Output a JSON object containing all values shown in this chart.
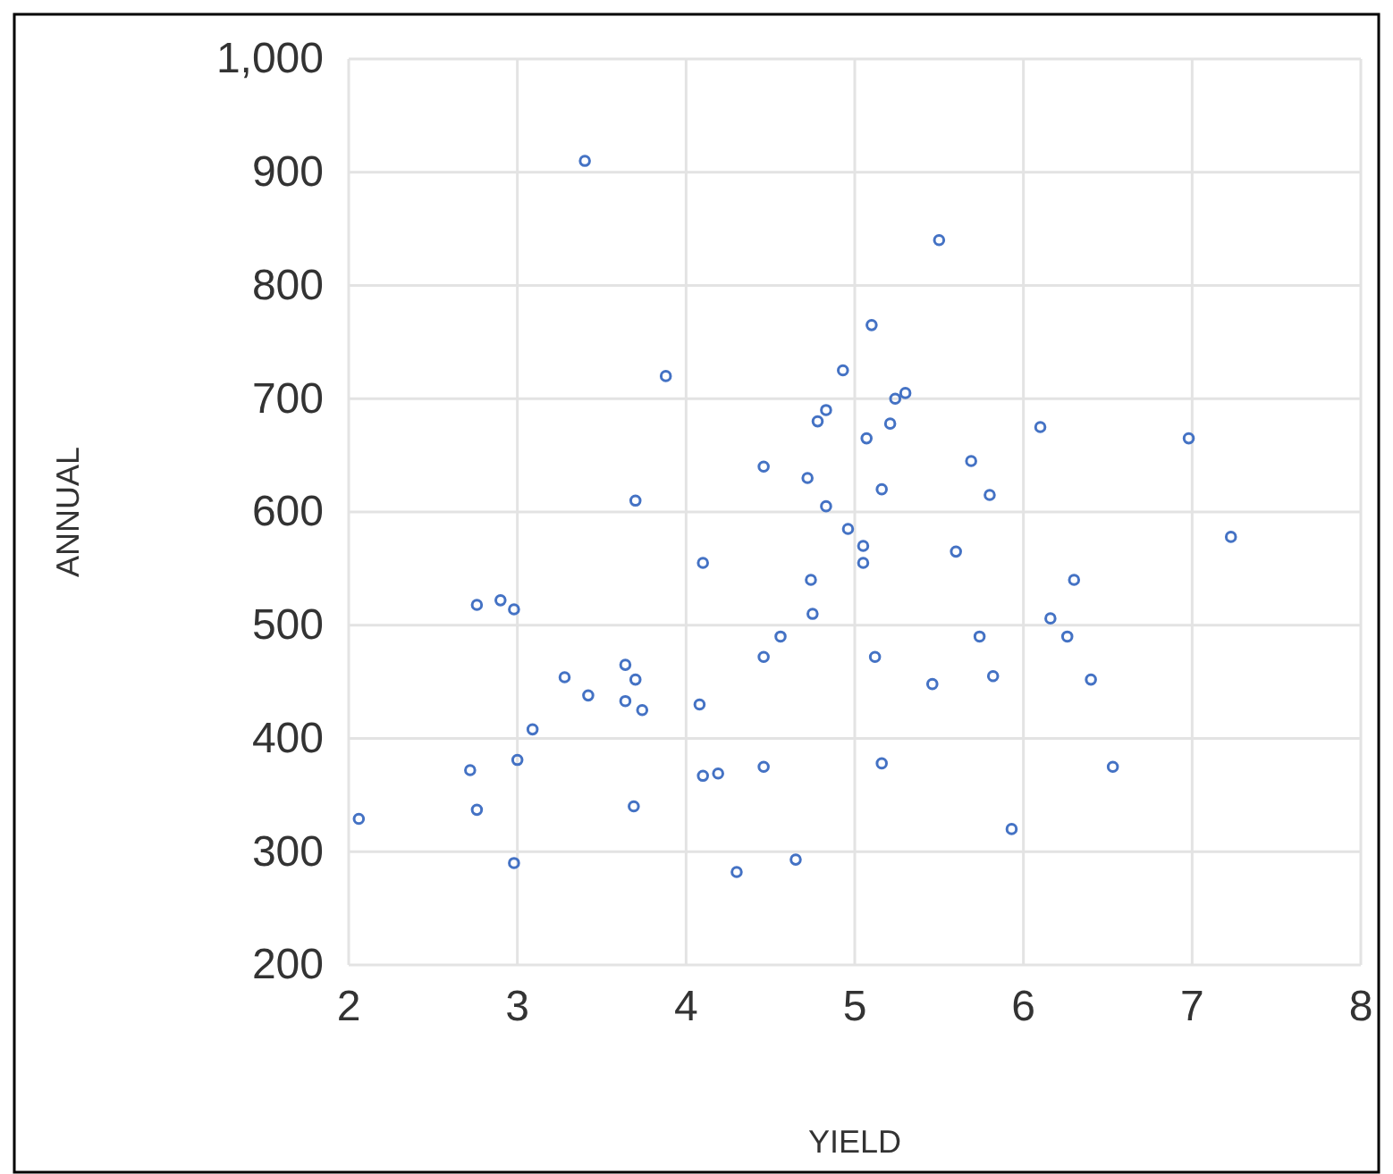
{
  "chart_data": {
    "type": "scatter",
    "xlabel": "YIELD",
    "ylabel": "ANNUAL",
    "xlim": [
      2,
      8
    ],
    "xticks": [
      2,
      3,
      4,
      5,
      6,
      7,
      8
    ],
    "ylim": [
      200,
      1000
    ],
    "yticks": [
      200,
      300,
      400,
      500,
      600,
      700,
      800,
      900,
      {
        "value": 1000,
        "label": "1,000"
      }
    ],
    "grid": true,
    "marker": "circle",
    "series": [
      {
        "color": "#4472c4",
        "x": [
          3.4,
          3.88,
          3.7,
          4.1,
          4.46,
          4.93,
          5.5,
          5.1,
          4.78,
          4.83,
          4.72,
          4.83,
          5.07,
          5.24,
          5.3,
          5.21,
          5.69,
          5.8,
          5.16,
          6.1,
          6.98,
          7.23,
          4.96,
          5.05,
          5.05,
          5.6,
          6.3,
          6.16,
          6.26,
          5.74,
          5.12,
          5.46,
          5.82,
          6.4,
          5.16,
          6.53,
          5.93,
          4.74,
          4.75,
          4.56,
          4.46,
          2.76,
          2.9,
          2.98,
          3.64,
          3.7,
          3.28,
          3.42,
          3.64,
          3.74,
          4.08,
          3.09,
          3.0,
          2.72,
          2.76,
          2.06,
          2.98,
          3.69,
          4.1,
          4.19,
          4.46,
          4.3,
          4.65
        ],
        "values": [
          910,
          720,
          610,
          555,
          640,
          725,
          840,
          765,
          680,
          690,
          630,
          605,
          665,
          700,
          705,
          678,
          645,
          615,
          620,
          675,
          665,
          578,
          585,
          570,
          555,
          565,
          540,
          506,
          490,
          490,
          472,
          448,
          455,
          452,
          378,
          375,
          320,
          540,
          510,
          490,
          472,
          518,
          522,
          514,
          465,
          452,
          454,
          438,
          433,
          425,
          430,
          408,
          381,
          372,
          337,
          329,
          290,
          340,
          367,
          369,
          375,
          282,
          293
        ]
      }
    ]
  }
}
